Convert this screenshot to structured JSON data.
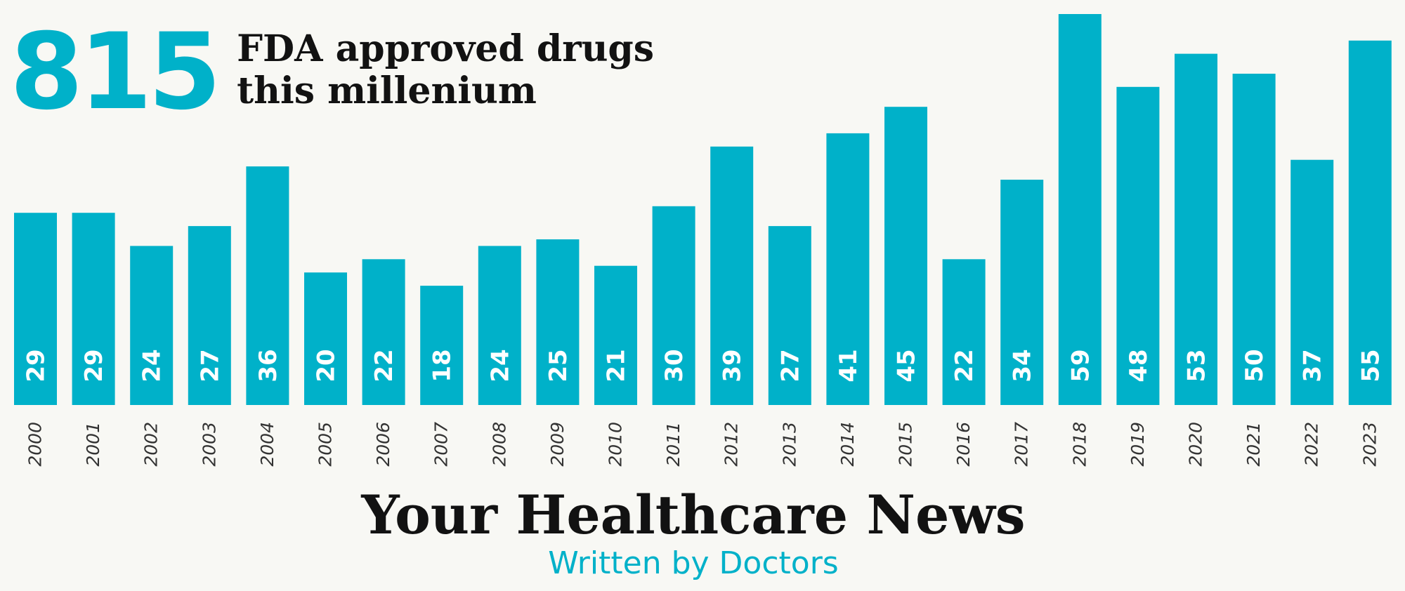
{
  "headline": {
    "total": "815",
    "line1": "FDA approved drugs",
    "line2": "this millenium"
  },
  "brand": {
    "title": "Your Healthcare News",
    "tagline": "Written by Doctors"
  },
  "colors": {
    "bar": "#00b1c9",
    "bar_label": "#ffffff",
    "axis_label": "#333333"
  },
  "chart_data": {
    "type": "bar",
    "title": "815 FDA approved drugs this millenium",
    "xlabel": "",
    "ylabel": "",
    "ylim": [
      0,
      59
    ],
    "grid": false,
    "legend": "none",
    "categories": [
      "2000",
      "2001",
      "2002",
      "2003",
      "2004",
      "2005",
      "2006",
      "2007",
      "2008",
      "2009",
      "2010",
      "2011",
      "2012",
      "2013",
      "2014",
      "2015",
      "2016",
      "2017",
      "2018",
      "2019",
      "2020",
      "2021",
      "2022",
      "2023"
    ],
    "values": [
      29,
      29,
      24,
      27,
      36,
      20,
      22,
      18,
      24,
      25,
      21,
      30,
      39,
      27,
      41,
      45,
      22,
      34,
      59,
      48,
      53,
      50,
      37,
      55
    ]
  }
}
